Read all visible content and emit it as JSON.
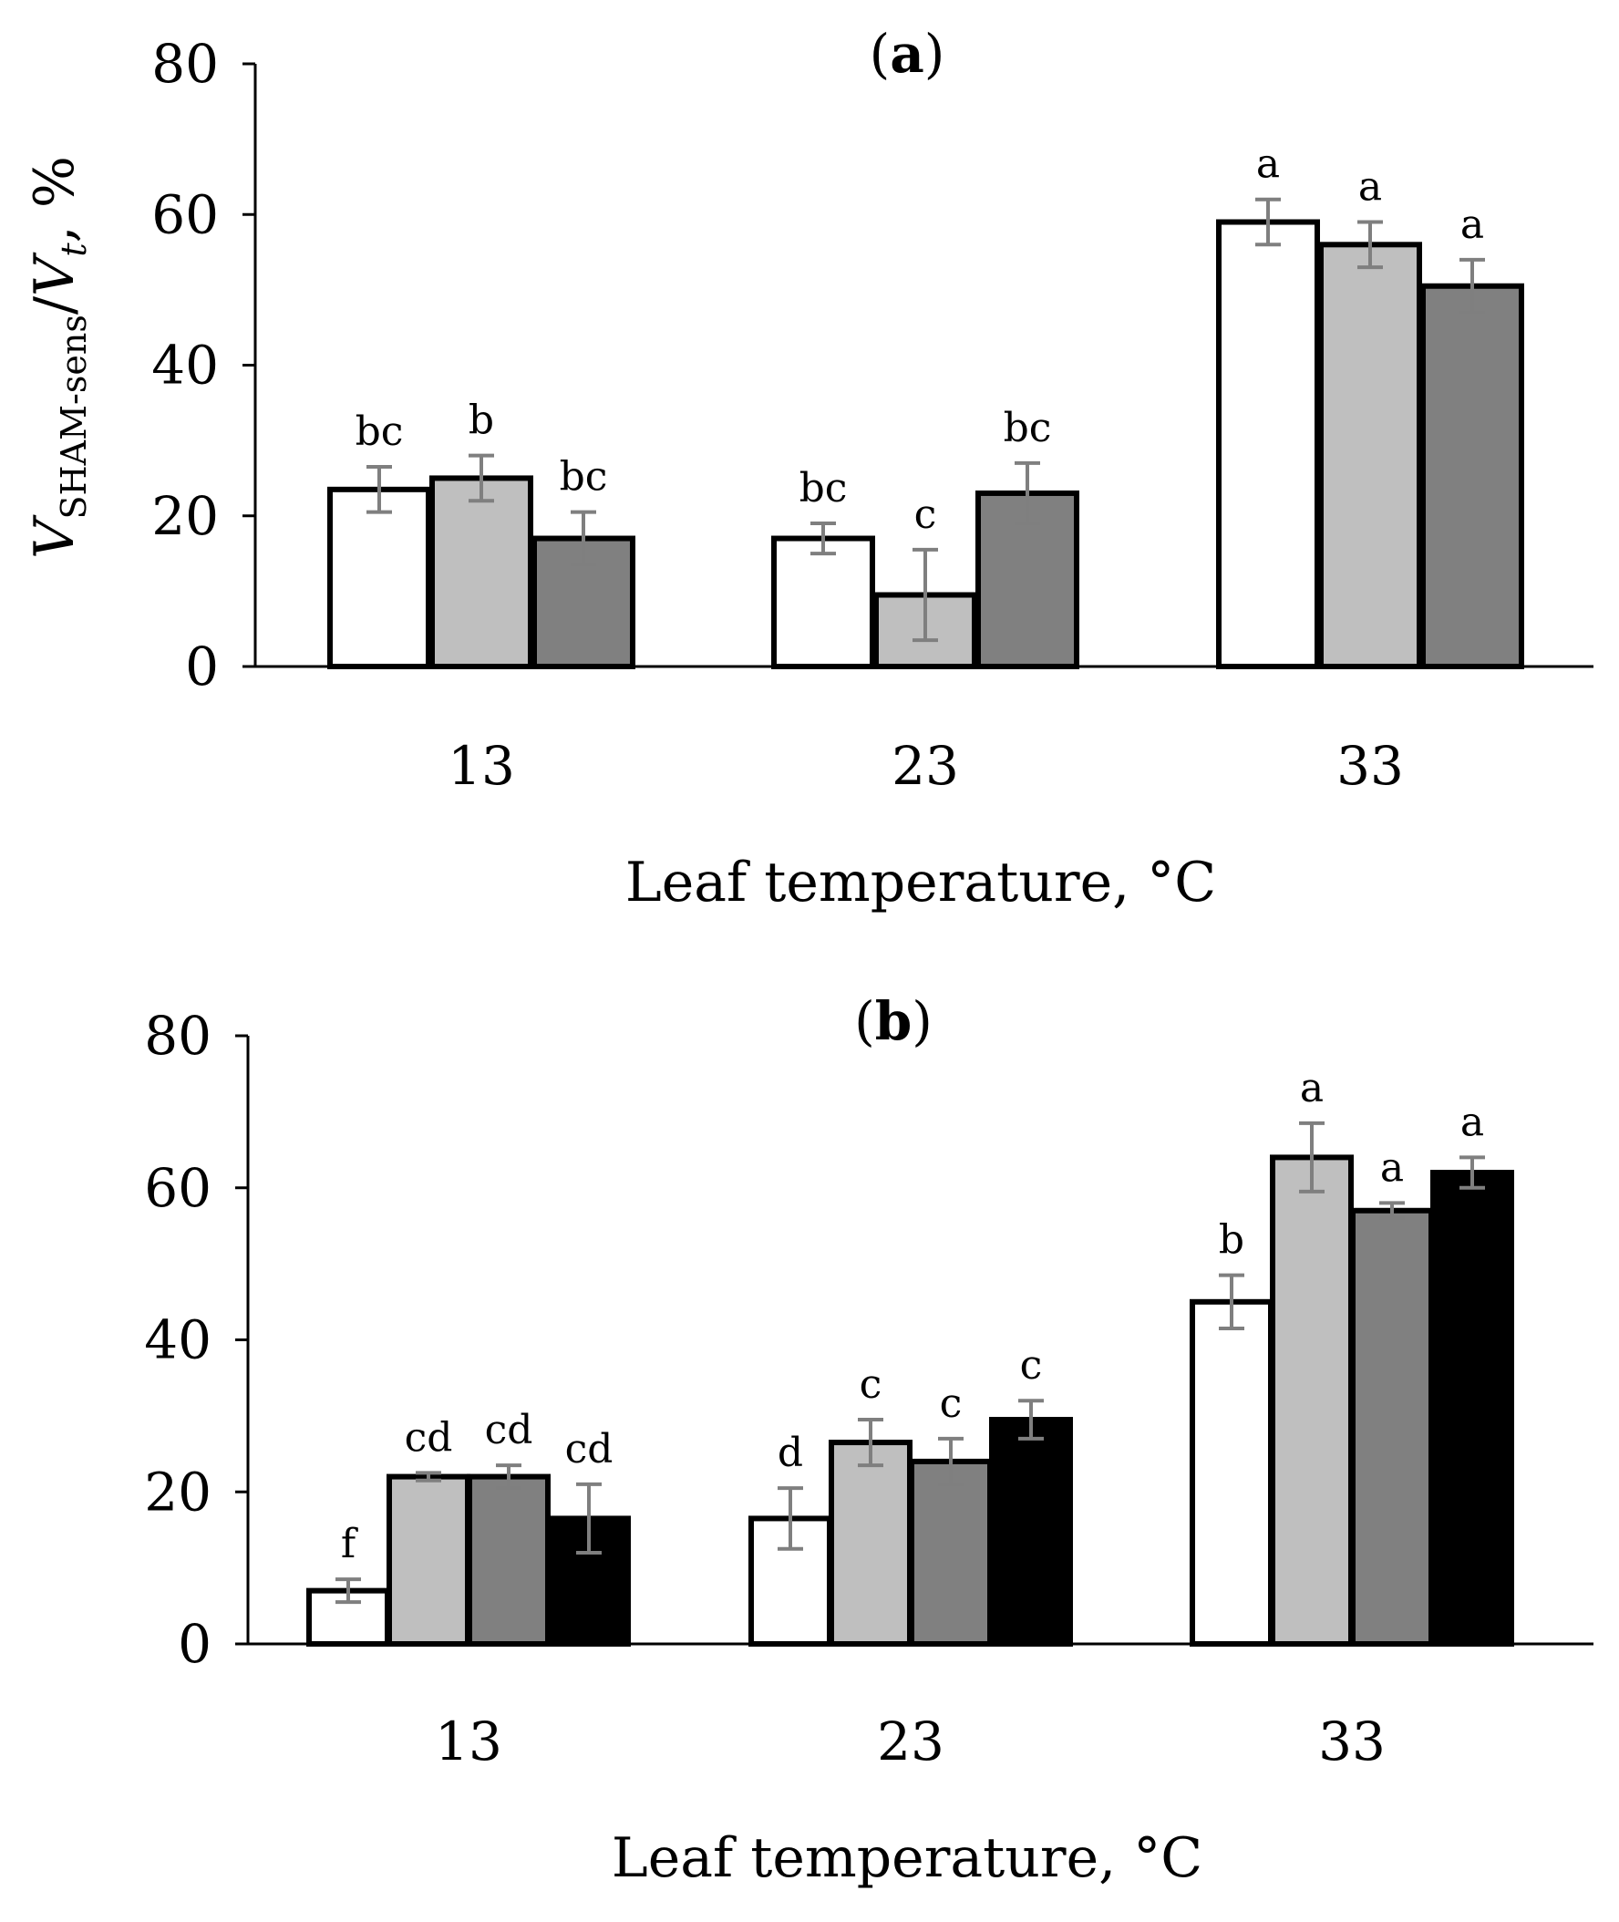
{
  "chart_data": [
    {
      "type": "bar",
      "panel_label": "a",
      "categories": [
        "13",
        "23",
        "33"
      ],
      "xlabel": "Leaf temperature, °C",
      "ylabel": {
        "main": "V",
        "sub1": "SHAM-sens",
        "sep": "/",
        "main2": "V",
        "sub2": "t",
        "suffix": ", %"
      },
      "ylim": [
        0,
        80
      ],
      "yticks": [
        0,
        20,
        40,
        60,
        80
      ],
      "series_colors": [
        "#ffffff",
        "#bfbfbf",
        "#808080"
      ],
      "series": [
        {
          "name": "series 1",
          "values": [
            23.5,
            17,
            59
          ],
          "errors": [
            3,
            2,
            3
          ],
          "letters": [
            "bc",
            "bc",
            "a"
          ]
        },
        {
          "name": "series 2",
          "values": [
            25,
            9.5,
            56
          ],
          "errors": [
            3,
            6,
            3
          ],
          "letters": [
            "b",
            "c",
            "a"
          ]
        },
        {
          "name": "series 3",
          "values": [
            17,
            23,
            50.5
          ],
          "errors": [
            3.5,
            4,
            3.5
          ],
          "letters": [
            "bc",
            "bc",
            "a"
          ]
        }
      ]
    },
    {
      "type": "bar",
      "panel_label": "b",
      "categories": [
        "13",
        "23",
        "33"
      ],
      "xlabel": "Leaf temperature, °C",
      "ylim": [
        0,
        80
      ],
      "yticks": [
        0,
        20,
        40,
        60,
        80
      ],
      "series_colors": [
        "#ffffff",
        "#bfbfbf",
        "#808080",
        "#000000"
      ],
      "series": [
        {
          "name": "series 1",
          "values": [
            7,
            16.5,
            45
          ],
          "errors": [
            1.5,
            4,
            3.5
          ],
          "letters": [
            "f",
            "d",
            "b"
          ]
        },
        {
          "name": "series 2",
          "values": [
            22,
            26.5,
            64
          ],
          "errors": [
            0.5,
            3,
            4.5
          ],
          "letters": [
            "cd",
            "c",
            "a"
          ]
        },
        {
          "name": "series 3",
          "values": [
            22,
            24,
            57
          ],
          "errors": [
            1.5,
            3,
            1
          ],
          "letters": [
            "cd",
            "c",
            "a"
          ]
        },
        {
          "name": "series 4",
          "values": [
            16.5,
            29.5,
            62
          ],
          "errors": [
            4.5,
            2.5,
            2
          ],
          "letters": [
            "cd",
            "c",
            "a"
          ]
        }
      ]
    }
  ]
}
